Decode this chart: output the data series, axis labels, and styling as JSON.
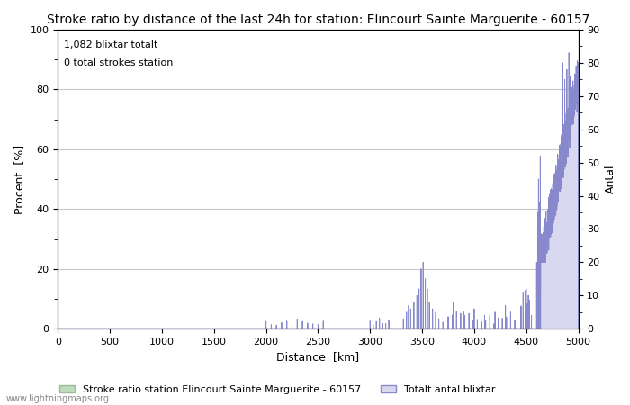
{
  "title": "Stroke ratio by distance of the last 24h for station: Elincourt Sainte Marguerite - 60157",
  "annotation_line1": "1,082 blixtar totalt",
  "annotation_line2": "0 total strokes station",
  "xlabel": "Distance  [km]",
  "ylabel_left": "Procent  [%]",
  "ylabel_right": "Antal",
  "xlim": [
    0,
    5000
  ],
  "ylim_left": [
    0,
    100
  ],
  "ylim_right": [
    0,
    90
  ],
  "xticks": [
    0,
    500,
    1000,
    1500,
    2000,
    2500,
    3000,
    3500,
    4000,
    4500,
    5000
  ],
  "yticks_left": [
    0,
    20,
    40,
    60,
    80,
    100
  ],
  "yticks_right": [
    0,
    10,
    20,
    30,
    40,
    50,
    60,
    70,
    80,
    90
  ],
  "grid_color": "#c8c8c8",
  "stroke_ratio_color": "#bbddbb",
  "stroke_ratio_edge_color": "#99bb99",
  "total_blixtar_fill_color": "#d8d8f0",
  "total_blixtar_line_color": "#8888cc",
  "background_color": "#ffffff",
  "watermark": "www.lightningmaps.org",
  "legend_label1": "Stroke ratio station Elincourt Sainte Marguerite - 60157",
  "legend_label2": "Totalt antal blixtar",
  "title_fontsize": 10,
  "label_fontsize": 9,
  "tick_fontsize": 8,
  "annotation_fontsize": 8,
  "watermark_fontsize": 7
}
